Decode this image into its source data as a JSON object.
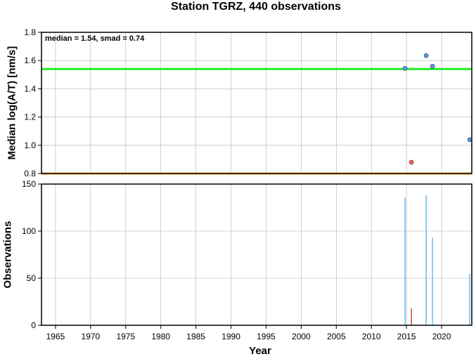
{
  "chart_data": [
    {
      "type": "scatter",
      "title": "Station TGRZ, 440 observations",
      "ylabel": "Median log(A/T) [nm/s]",
      "annotation": "median = 1.54, smad = 0.74",
      "xlim": [
        1963,
        2024.3
      ],
      "ylim": [
        0.8,
        1.8
      ],
      "yticks": [
        "0.8",
        "1.0",
        "1.2",
        "1.4",
        "1.6",
        "1.8"
      ],
      "grid": true,
      "reference_lines": [
        {
          "value": 1.54,
          "color": "#22ee22"
        },
        {
          "value": 0.8,
          "color": "#f0a020"
        }
      ],
      "series": [
        {
          "color": "#5599ff",
          "points": [
            {
              "x": 2014.8,
              "y": 1.545
            },
            {
              "x": 2017.8,
              "y": 1.635
            },
            {
              "x": 2018.7,
              "y": 1.56
            },
            {
              "x": 2024.0,
              "y": 1.04
            }
          ]
        },
        {
          "color": "#ff5555",
          "points": [
            {
              "x": 2015.7,
              "y": 0.88
            }
          ]
        }
      ]
    },
    {
      "type": "bar",
      "xlabel": "Year",
      "ylabel": "Observations",
      "xlim": [
        1963,
        2024.3
      ],
      "ylim": [
        0,
        150
      ],
      "xticks": [
        "1965",
        "1970",
        "1975",
        "1980",
        "1985",
        "1990",
        "1995",
        "2000",
        "2005",
        "2010",
        "2015",
        "2020"
      ],
      "yticks": [
        "0",
        "50",
        "100",
        "150"
      ],
      "grid": true,
      "series": [
        {
          "color": "#44aaee",
          "points": [
            {
              "x": 2014.8,
              "y": 136
            },
            {
              "x": 2017.8,
              "y": 138
            },
            {
              "x": 2018.7,
              "y": 93
            },
            {
              "x": 2024.0,
              "y": 55
            }
          ]
        },
        {
          "color": "#aa2222",
          "points": [
            {
              "x": 2015.7,
              "y": 18
            }
          ]
        }
      ]
    }
  ]
}
